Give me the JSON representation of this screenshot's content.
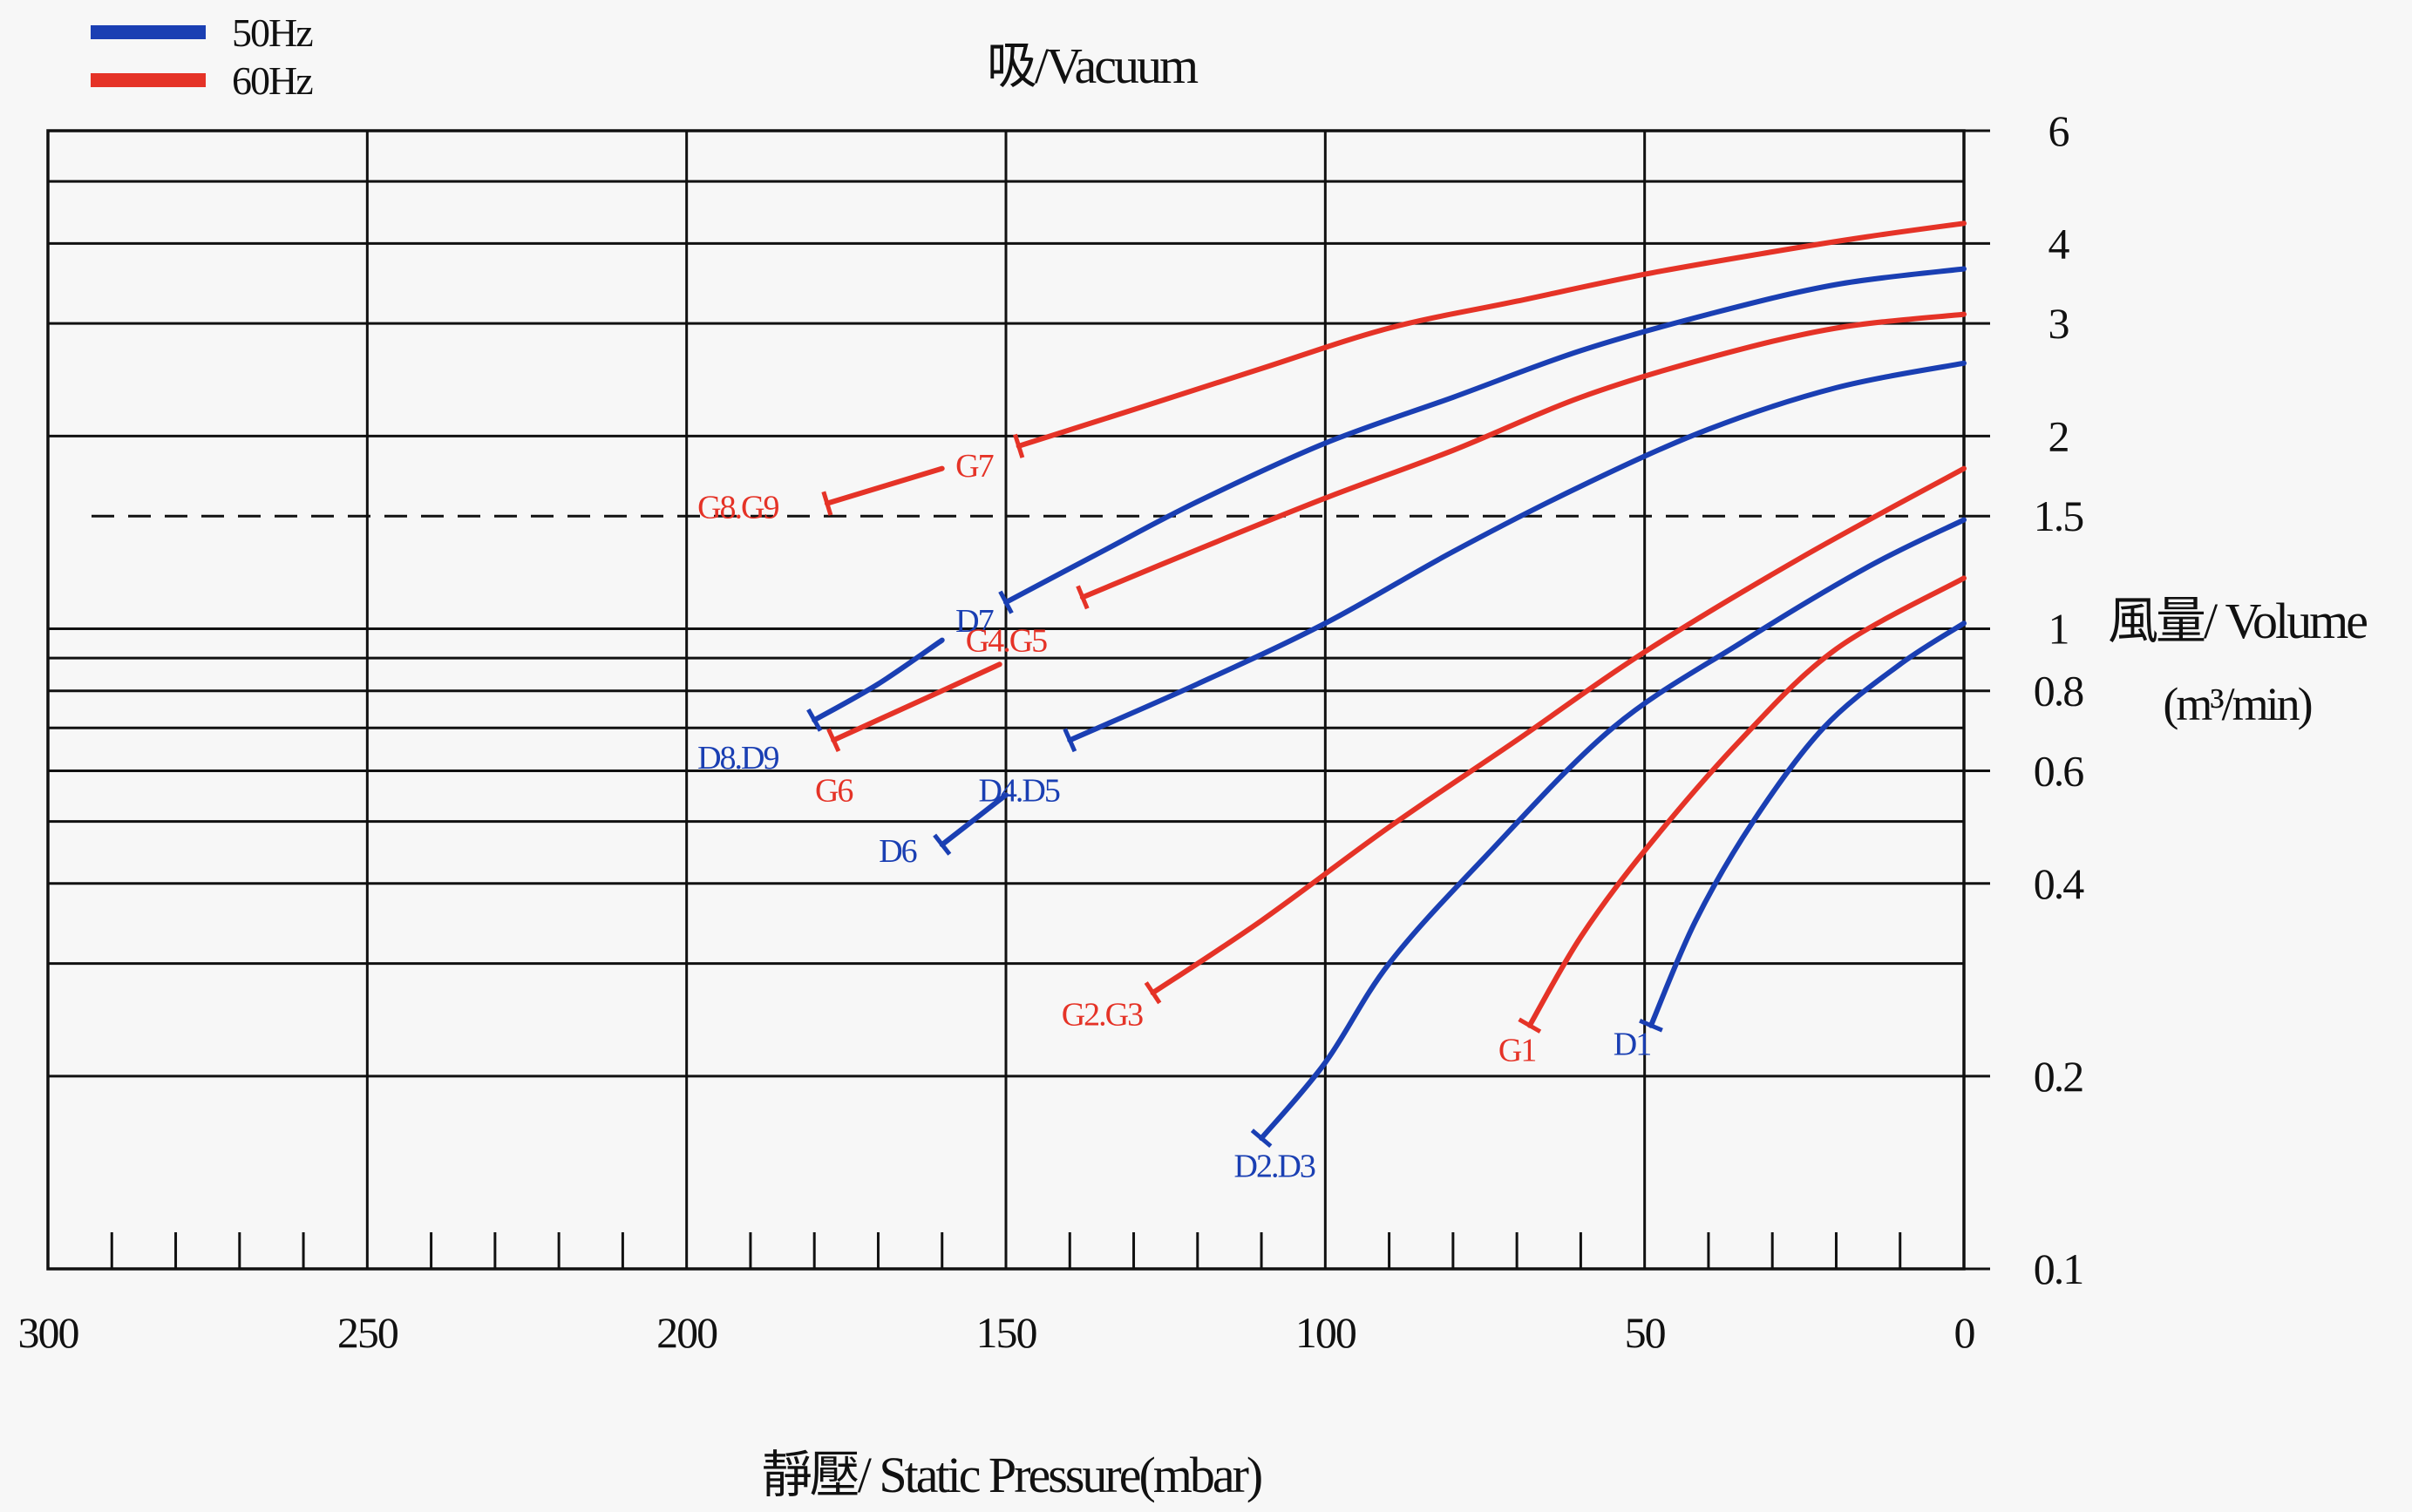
{
  "chart_data": {
    "type": "line",
    "title": "吸/Vacuum",
    "xlabel": "靜壓/ Static Pressure(mbar)",
    "ylabel_line1": "風量/ Volume",
    "ylabel_line2": "(m³/min)",
    "x_axis": {
      "range": [
        300,
        0
      ],
      "reversed": true,
      "ticks": [
        300,
        250,
        200,
        150,
        100,
        50,
        0
      ],
      "minor_step": 10
    },
    "y_axis": {
      "scale": "log",
      "range": [
        0.1,
        6
      ],
      "ticks": [
        0.1,
        0.2,
        0.4,
        0.6,
        0.8,
        1,
        1.5,
        2,
        3,
        4,
        6
      ],
      "gridlines": [
        0.1,
        0.2,
        0.3,
        0.4,
        0.5,
        0.6,
        0.7,
        0.8,
        0.9,
        1,
        2,
        3,
        4,
        5,
        6
      ],
      "dashed_reference": 1.5
    },
    "grid": true,
    "legend": {
      "position": "top-left",
      "entries": [
        {
          "name": "50Hz",
          "color": "#1a3fb3"
        },
        {
          "name": "60Hz",
          "color": "#e53327"
        }
      ]
    },
    "series": [
      {
        "name": "G8.G9",
        "frequency": "60Hz",
        "color": "#e53327",
        "end_marker": true,
        "label_at": [
          192,
          1.55
        ],
        "points": [
          [
            178,
            1.57
          ],
          [
            160,
            1.78
          ]
        ]
      },
      {
        "name": "G7",
        "frequency": "60Hz",
        "color": "#e53327",
        "end_marker": true,
        "label_at": [
          155,
          1.8
        ],
        "points": [
          [
            148,
            1.93
          ],
          [
            130,
            2.2
          ],
          [
            110,
            2.55
          ],
          [
            90,
            2.95
          ],
          [
            70,
            3.25
          ],
          [
            50,
            3.58
          ],
          [
            30,
            3.88
          ],
          [
            15,
            4.1
          ],
          [
            0,
            4.3
          ]
        ]
      },
      {
        "name": "D7",
        "frequency": "50Hz",
        "color": "#1a3fb3",
        "end_marker": true,
        "label_at": [
          155,
          1.03
        ],
        "points": [
          [
            150,
            1.1
          ],
          [
            135,
            1.32
          ],
          [
            120,
            1.58
          ],
          [
            100,
            1.95
          ],
          [
            80,
            2.3
          ],
          [
            60,
            2.72
          ],
          [
            40,
            3.1
          ],
          [
            20,
            3.45
          ],
          [
            0,
            3.65
          ]
        ]
      },
      {
        "name": "G4.G5",
        "frequency": "60Hz",
        "color": "#e53327",
        "end_marker": true,
        "label_at": [
          150,
          0.96
        ],
        "points": [
          [
            138,
            1.12
          ],
          [
            120,
            1.33
          ],
          [
            100,
            1.6
          ],
          [
            80,
            1.9
          ],
          [
            60,
            2.3
          ],
          [
            40,
            2.65
          ],
          [
            20,
            2.95
          ],
          [
            0,
            3.1
          ]
        ]
      },
      {
        "name": "D4.D5",
        "frequency": "50Hz",
        "color": "#1a3fb3",
        "end_marker": true,
        "label_at": [
          148,
          0.56
        ],
        "points": [
          [
            140,
            0.67
          ],
          [
            120,
            0.82
          ],
          [
            100,
            1.02
          ],
          [
            80,
            1.32
          ],
          [
            60,
            1.67
          ],
          [
            40,
            2.05
          ],
          [
            20,
            2.38
          ],
          [
            0,
            2.6
          ]
        ]
      },
      {
        "name": "D8.D9",
        "frequency": "50Hz",
        "color": "#1a3fb3",
        "end_marker": true,
        "label_at": [
          192,
          0.63
        ],
        "points": [
          [
            180,
            0.72
          ],
          [
            170,
            0.82
          ],
          [
            160,
            0.96
          ]
        ]
      },
      {
        "name": "G6",
        "frequency": "60Hz",
        "color": "#e53327",
        "end_marker": true,
        "label_at": [
          177,
          0.56
        ],
        "points": [
          [
            177,
            0.67
          ],
          [
            160,
            0.8
          ],
          [
            151,
            0.88
          ]
        ]
      },
      {
        "name": "D6",
        "frequency": "50Hz",
        "color": "#1a3fb3",
        "end_marker": true,
        "label_at": [
          167,
          0.45
        ],
        "points": [
          [
            160,
            0.46
          ],
          [
            150,
            0.55
          ]
        ]
      },
      {
        "name": "G2.G3",
        "frequency": "60Hz",
        "color": "#e53327",
        "end_marker": true,
        "label_at": [
          135,
          0.25
        ],
        "points": [
          [
            127,
            0.27
          ],
          [
            110,
            0.35
          ],
          [
            90,
            0.49
          ],
          [
            70,
            0.67
          ],
          [
            50,
            0.92
          ],
          [
            25,
            1.3
          ],
          [
            0,
            1.78
          ]
        ]
      },
      {
        "name": "D2.D3",
        "frequency": "50Hz",
        "color": "#1a3fb3",
        "end_marker": true,
        "label_at": [
          108,
          0.145
        ],
        "points": [
          [
            110,
            0.16
          ],
          [
            100,
            0.21
          ],
          [
            90,
            0.3
          ],
          [
            75,
            0.44
          ],
          [
            55,
            0.7
          ],
          [
            35,
            0.95
          ],
          [
            15,
            1.25
          ],
          [
            0,
            1.48
          ]
        ]
      },
      {
        "name": "G1",
        "frequency": "60Hz",
        "color": "#e53327",
        "end_marker": true,
        "label_at": [
          70,
          0.22
        ],
        "points": [
          [
            68,
            0.24
          ],
          [
            60,
            0.33
          ],
          [
            50,
            0.45
          ],
          [
            35,
            0.67
          ],
          [
            20,
            0.93
          ],
          [
            0,
            1.2
          ]
        ]
      },
      {
        "name": "D1",
        "frequency": "50Hz",
        "color": "#1a3fb3",
        "end_marker": true,
        "label_at": [
          52,
          0.225
        ],
        "points": [
          [
            49,
            0.24
          ],
          [
            42,
            0.35
          ],
          [
            33,
            0.5
          ],
          [
            22,
            0.7
          ],
          [
            10,
            0.88
          ],
          [
            0,
            1.02
          ]
        ]
      }
    ]
  }
}
